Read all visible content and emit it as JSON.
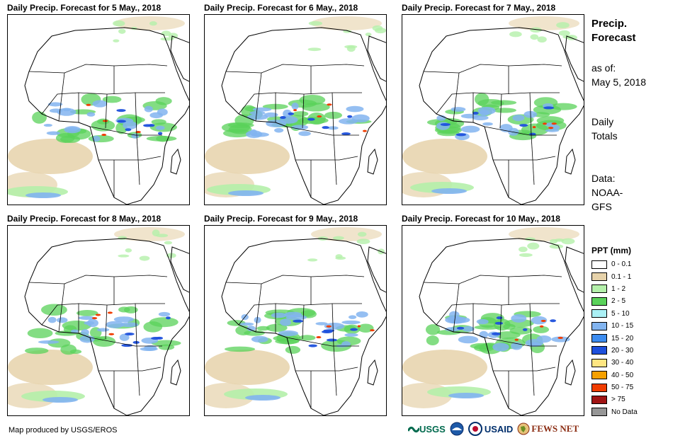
{
  "panels": [
    {
      "title": "Daily Precip. Forecast for 5 May., 2018"
    },
    {
      "title": "Daily Precip. Forecast for 6 May., 2018"
    },
    {
      "title": "Daily Precip. Forecast for 7 May., 2018"
    },
    {
      "title": "Daily Precip. Forecast for 8 May., 2018"
    },
    {
      "title": "Daily Precip. Forecast for 9 May., 2018"
    },
    {
      "title": "Daily Precip. Forecast for 10 May., 2018"
    }
  ],
  "side": {
    "title_line1": "Precip.",
    "title_line2": "Forecast",
    "asof_label": "as of:",
    "asof_date": "May 5, 2018",
    "totals_line1": "Daily",
    "totals_line2": "Totals",
    "data_line1": "Data:",
    "data_line2": "NOAA-",
    "data_line3": "GFS"
  },
  "legend": {
    "title": "PPT (mm)",
    "items": [
      {
        "label": "0 - 0.1",
        "color": "#ffffff"
      },
      {
        "label": "0.1 - 1",
        "color": "#e6d2aa"
      },
      {
        "label": "1 - 2",
        "color": "#b4f0aa"
      },
      {
        "label": "2 - 5",
        "color": "#5ad25a"
      },
      {
        "label": "5 - 10",
        "color": "#aaf0f5"
      },
      {
        "label": "10 - 15",
        "color": "#82b4f0"
      },
      {
        "label": "15 - 20",
        "color": "#3c8cf0"
      },
      {
        "label": "20 - 30",
        "color": "#1e50dc"
      },
      {
        "label": "30 - 40",
        "color": "#ffe682"
      },
      {
        "label": "40 - 50",
        "color": "#f5a000"
      },
      {
        "label": "50 - 75",
        "color": "#f03c00"
      },
      {
        "label": "> 75",
        "color": "#a01414"
      },
      {
        "label": "No Data",
        "color": "#969696"
      }
    ]
  },
  "footer": {
    "credit": "Map produced by USGS/EROS",
    "logo_usgs": "USGS",
    "logo_usaid": "USAID",
    "logo_fewsnet": "FEWS NET"
  }
}
